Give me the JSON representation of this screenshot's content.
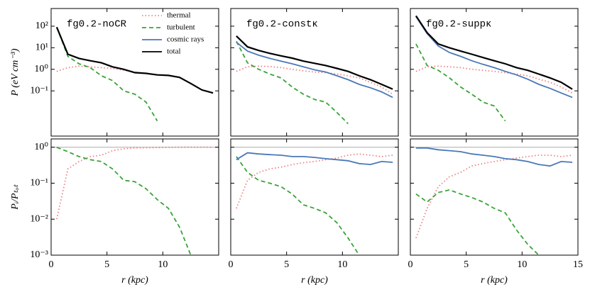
{
  "chart_data": [
    {
      "type": "line",
      "title": "fg0.2-noCR",
      "ylabel": "P (eV cm⁻³)",
      "log_y": true,
      "legend": "upper right",
      "x": [
        0.5,
        1.5,
        2.5,
        3.5,
        4.5,
        5.5,
        6.5,
        7.5,
        8.5,
        9.5,
        10.5,
        11.5,
        12.5,
        13.5,
        14.5
      ],
      "xlim": [
        0,
        15
      ],
      "xticks": [
        0,
        5,
        10,
        15
      ],
      "xtick_labels": false,
      "ylim": [
        0.0008,
        660
      ],
      "yticks": [
        {
          "value": 0.1,
          "label": "10⁻¹"
        },
        {
          "value": 1,
          "label": "10⁰"
        },
        {
          "value": 10,
          "label": "10¹"
        },
        {
          "value": 100,
          "label": "10²"
        }
      ],
      "series": [
        {
          "name": "thermal",
          "color": "#f08080",
          "linestyle": "dotted",
          "values": [
            0.8,
            1.2,
            1.4,
            1.3,
            1.2,
            1.1,
            0.9,
            0.75,
            0.65,
            0.57,
            0.52,
            0.42,
            0.22,
            0.11,
            0.08
          ]
        },
        {
          "name": "turbulent",
          "color": "#3aa33a",
          "linestyle": "dashed",
          "values": [
            90,
            4,
            1.8,
            1.2,
            0.5,
            0.3,
            0.1,
            0.07,
            0.03,
            0.004,
            null,
            null,
            null,
            null,
            null
          ]
        },
        {
          "name": "cosmic rays",
          "color": "#4a78b8",
          "linestyle": "solid",
          "values": [
            null,
            null,
            null,
            null,
            null,
            null,
            null,
            null,
            null,
            null,
            null,
            null,
            null,
            null,
            null
          ]
        },
        {
          "name": "total",
          "color": "#000000",
          "linestyle": "solid",
          "values": [
            90,
            5,
            3.2,
            2.5,
            2.0,
            1.3,
            1.0,
            0.7,
            0.65,
            0.55,
            0.52,
            0.42,
            0.22,
            0.11,
            0.08
          ]
        }
      ]
    },
    {
      "type": "line",
      "title": "fg0.2-constκ",
      "log_y": true,
      "x": [
        0.5,
        1.5,
        2.5,
        3.5,
        4.5,
        5.5,
        6.5,
        7.5,
        8.5,
        9.5,
        10.5,
        11.5,
        12.5,
        13.5,
        14.5
      ],
      "xlim": [
        0,
        15
      ],
      "xticks": [
        0,
        5,
        10,
        15
      ],
      "xtick_labels": false,
      "ylim": [
        0.0008,
        660
      ],
      "yticks": [
        0.1,
        1,
        10,
        100
      ],
      "ytick_labels": false,
      "series": [
        {
          "name": "thermal",
          "color": "#f08080",
          "linestyle": "dotted",
          "values": [
            0.8,
            1.3,
            1.4,
            1.35,
            1.2,
            1.0,
            0.85,
            0.75,
            0.7,
            0.6,
            0.5,
            0.4,
            0.25,
            0.15,
            0.07
          ]
        },
        {
          "name": "turbulent",
          "color": "#3aa33a",
          "linestyle": "dashed",
          "values": [
            20,
            2,
            1.0,
            0.6,
            0.4,
            0.15,
            0.07,
            0.04,
            0.03,
            0.01,
            0.003,
            null,
            null,
            null,
            null
          ]
        },
        {
          "name": "cosmic rays",
          "color": "#4a78b8",
          "linestyle": "solid",
          "values": [
            18,
            7,
            4.5,
            3.2,
            2.4,
            1.8,
            1.3,
            0.95,
            0.75,
            0.5,
            0.33,
            0.2,
            0.14,
            0.09,
            0.05
          ]
        },
        {
          "name": "total",
          "color": "#000000",
          "linestyle": "solid",
          "values": [
            35,
            11,
            7.5,
            5.5,
            4.2,
            3.3,
            2.4,
            1.9,
            1.5,
            1.1,
            0.8,
            0.5,
            0.33,
            0.2,
            0.12
          ]
        }
      ]
    },
    {
      "type": "line",
      "title": "fg0.2-suppκ",
      "log_y": true,
      "x": [
        0.5,
        1.5,
        2.5,
        3.5,
        4.5,
        5.5,
        6.5,
        7.5,
        8.5,
        9.5,
        10.5,
        11.5,
        12.5,
        13.5,
        14.5
      ],
      "xlim": [
        0,
        15
      ],
      "xticks": [
        0,
        5,
        10,
        15
      ],
      "xtick_labels": false,
      "ylim": [
        0.0008,
        660
      ],
      "yticks": [
        0.1,
        1,
        10,
        100
      ],
      "ytick_labels": false,
      "series": [
        {
          "name": "thermal",
          "color": "#f08080",
          "linestyle": "dotted",
          "values": [
            0.8,
            1.3,
            1.4,
            1.3,
            1.2,
            1.0,
            0.9,
            0.8,
            0.7,
            0.6,
            0.5,
            0.35,
            0.25,
            0.15,
            0.08
          ]
        },
        {
          "name": "turbulent",
          "color": "#3aa33a",
          "linestyle": "dashed",
          "values": [
            15,
            1.5,
            0.9,
            0.4,
            0.15,
            0.07,
            0.03,
            0.02,
            0.004,
            null,
            null,
            null,
            null,
            null,
            null
          ]
        },
        {
          "name": "cosmic rays",
          "color": "#4a78b8",
          "linestyle": "solid",
          "values": [
            280,
            45,
            12,
            6,
            4,
            2.5,
            1.7,
            1.2,
            0.8,
            0.55,
            0.35,
            0.2,
            0.13,
            0.08,
            0.05
          ]
        },
        {
          "name": "total",
          "color": "#000000",
          "linestyle": "solid",
          "values": [
            300,
            50,
            15,
            10,
            7,
            5,
            3.5,
            2.5,
            1.8,
            1.2,
            0.9,
            0.6,
            0.4,
            0.25,
            0.12
          ]
        }
      ]
    },
    {
      "type": "line",
      "xlabel": "r (kpc)",
      "ylabel": "Pᵢ/Pₜₒₜ",
      "log_y": true,
      "hline": 1,
      "x": [
        0.5,
        1.5,
        2.5,
        3.5,
        4.5,
        5.5,
        6.5,
        7.5,
        8.5,
        9.5,
        10.5,
        11.5,
        12.5,
        13.5,
        14.5
      ],
      "xlim": [
        0,
        15
      ],
      "xticks": [
        0,
        5,
        10
      ],
      "ylim": [
        0.001,
        1.7
      ],
      "yticks": [
        {
          "value": 0.001,
          "label": "10⁻³"
        },
        {
          "value": 0.01,
          "label": "10⁻²"
        },
        {
          "value": 0.1,
          "label": "10⁻¹"
        },
        {
          "value": 1,
          "label": "10⁰"
        }
      ],
      "series": [
        {
          "name": "thermal",
          "color": "#f08080",
          "linestyle": "dotted",
          "values": [
            0.01,
            0.25,
            0.4,
            0.55,
            0.6,
            0.8,
            0.9,
            0.95,
            0.97,
            0.98,
            0.99,
            1,
            1,
            1,
            1
          ]
        },
        {
          "name": "turbulent",
          "color": "#3aa33a",
          "linestyle": "dashed",
          "values": [
            0.99,
            0.75,
            0.55,
            0.45,
            0.4,
            0.25,
            0.12,
            0.11,
            0.07,
            0.035,
            0.02,
            0.006,
            0.001,
            null,
            null
          ]
        }
      ]
    },
    {
      "type": "line",
      "xlabel": "r (kpc)",
      "log_y": true,
      "hline": 1,
      "x": [
        0.5,
        1.5,
        2.5,
        3.5,
        4.5,
        5.5,
        6.5,
        7.5,
        8.5,
        9.5,
        10.5,
        11.5,
        12.5,
        13.5,
        14.5
      ],
      "xlim": [
        0,
        15
      ],
      "xticks": [
        0,
        5,
        10
      ],
      "ylim": [
        0.001,
        1.7
      ],
      "yticks": [
        0.001,
        0.01,
        0.1,
        1
      ],
      "ytick_labels": false,
      "series": [
        {
          "name": "thermal",
          "color": "#f08080",
          "linestyle": "dotted",
          "values": [
            0.02,
            0.12,
            0.2,
            0.25,
            0.28,
            0.33,
            0.37,
            0.4,
            0.45,
            0.5,
            0.6,
            0.65,
            0.6,
            0.55,
            0.6
          ]
        },
        {
          "name": "turbulent",
          "color": "#3aa33a",
          "linestyle": "dashed",
          "values": [
            0.55,
            0.2,
            0.12,
            0.1,
            0.08,
            0.05,
            0.025,
            0.02,
            0.015,
            0.008,
            0.003,
            0.001,
            null,
            null,
            null
          ]
        },
        {
          "name": "cosmic rays",
          "color": "#4a78b8",
          "linestyle": "solid",
          "values": [
            0.45,
            0.7,
            0.65,
            0.62,
            0.6,
            0.55,
            0.55,
            0.52,
            0.48,
            0.45,
            0.42,
            0.35,
            0.33,
            0.4,
            0.38
          ]
        }
      ]
    },
    {
      "type": "line",
      "xlabel": "r (kpc)",
      "log_y": true,
      "hline": 1,
      "x": [
        0.5,
        1.5,
        2.5,
        3.5,
        4.5,
        5.5,
        6.5,
        7.5,
        8.5,
        9.5,
        10.5,
        11.5,
        12.5,
        13.5,
        14.5
      ],
      "xlim": [
        0,
        15
      ],
      "xticks": [
        0,
        5,
        10,
        15
      ],
      "ylim": [
        0.001,
        1.7
      ],
      "yticks": [
        0.001,
        0.01,
        0.1,
        1
      ],
      "ytick_labels": false,
      "series": [
        {
          "name": "thermal",
          "color": "#f08080",
          "linestyle": "dotted",
          "values": [
            0.003,
            0.02,
            0.08,
            0.15,
            0.2,
            0.3,
            0.35,
            0.4,
            0.45,
            0.5,
            0.55,
            0.6,
            0.6,
            0.55,
            0.6
          ]
        },
        {
          "name": "turbulent",
          "color": "#3aa33a",
          "linestyle": "dashed",
          "values": [
            0.05,
            0.03,
            0.055,
            0.065,
            0.05,
            0.04,
            0.03,
            0.02,
            0.015,
            0.005,
            0.002,
            0.001,
            null,
            null,
            null
          ]
        },
        {
          "name": "cosmic rays",
          "color": "#4a78b8",
          "linestyle": "solid",
          "values": [
            0.95,
            0.95,
            0.85,
            0.8,
            0.75,
            0.65,
            0.6,
            0.55,
            0.48,
            0.45,
            0.4,
            0.33,
            0.3,
            0.4,
            0.38
          ]
        }
      ]
    }
  ]
}
